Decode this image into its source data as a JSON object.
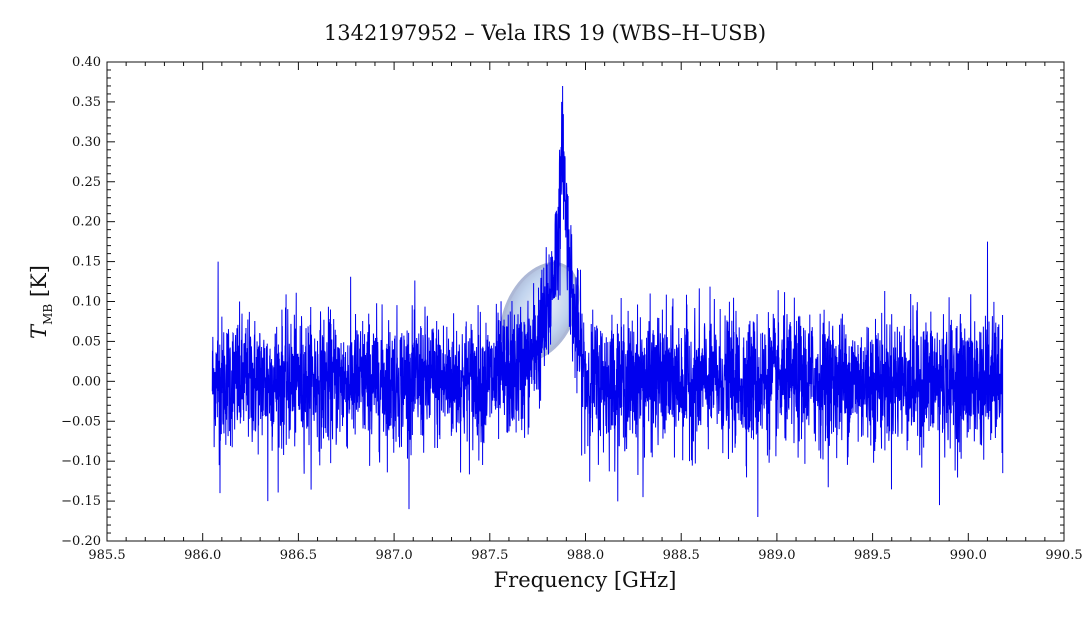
{
  "chart_data": {
    "type": "line",
    "title": "1342197952 – Vela IRS 19 (WBS–H–USB)",
    "xlabel": "Frequency [GHz]",
    "ylabel_main": "T",
    "ylabel_sub": "MB",
    "ylabel_unit": " [K]",
    "xlim": [
      985.5,
      990.5
    ],
    "ylim": [
      -0.2,
      0.4
    ],
    "x_ticks": [
      985.5,
      986.0,
      986.5,
      987.0,
      987.5,
      988.0,
      988.5,
      989.0,
      989.5,
      990.0,
      990.5
    ],
    "x_tick_labels": [
      "985.5",
      "986.0",
      "986.5",
      "987.0",
      "987.5",
      "988.0",
      "988.5",
      "989.0",
      "989.5",
      "990.0",
      "990.5"
    ],
    "y_ticks": [
      -0.2,
      -0.15,
      -0.1,
      -0.05,
      0.0,
      0.05,
      0.1,
      0.15,
      0.2,
      0.25,
      0.3,
      0.35,
      0.4
    ],
    "y_tick_labels": [
      "−0.20",
      "−0.15",
      "−0.10",
      "−0.05",
      "0.00",
      "0.05",
      "0.10",
      "0.15",
      "0.20",
      "0.25",
      "0.30",
      "0.35",
      "0.40"
    ],
    "series": [
      {
        "color": "#0000ee",
        "x_start": 986.05,
        "x_end": 990.18,
        "x": [
          986.05,
          986.25,
          986.5,
          986.75,
          987.0,
          987.25,
          987.5,
          987.7,
          987.8,
          987.84,
          987.87,
          987.88,
          987.89,
          987.91,
          987.94,
          988.0,
          988.25,
          988.5,
          988.75,
          989.0,
          989.25,
          989.5,
          989.75,
          990.0,
          990.18
        ],
        "y": [
          0.0,
          0.0,
          0.0,
          0.0,
          0.0,
          0.0,
          0.0,
          0.02,
          0.08,
          0.15,
          0.22,
          0.3,
          0.25,
          0.17,
          0.08,
          0.0,
          0.0,
          0.0,
          0.0,
          0.0,
          0.0,
          0.0,
          0.0,
          0.0,
          0.0
        ],
        "noise_rms": 0.04,
        "extreme_points": [
          {
            "x": 986.09,
            "y": -0.14
          },
          {
            "x": 986.08,
            "y": 0.15
          },
          {
            "x": 986.34,
            "y": -0.15
          },
          {
            "x": 987.88,
            "y": 0.37
          },
          {
            "x": 987.9,
            "y": 0.225
          },
          {
            "x": 988.3,
            "y": -0.145
          },
          {
            "x": 988.9,
            "y": -0.17
          },
          {
            "x": 989.85,
            "y": -0.155
          },
          {
            "x": 990.1,
            "y": 0.175
          },
          {
            "x": 990.18,
            "y": -0.115
          }
        ]
      }
    ],
    "grid": false,
    "legend": "none"
  }
}
